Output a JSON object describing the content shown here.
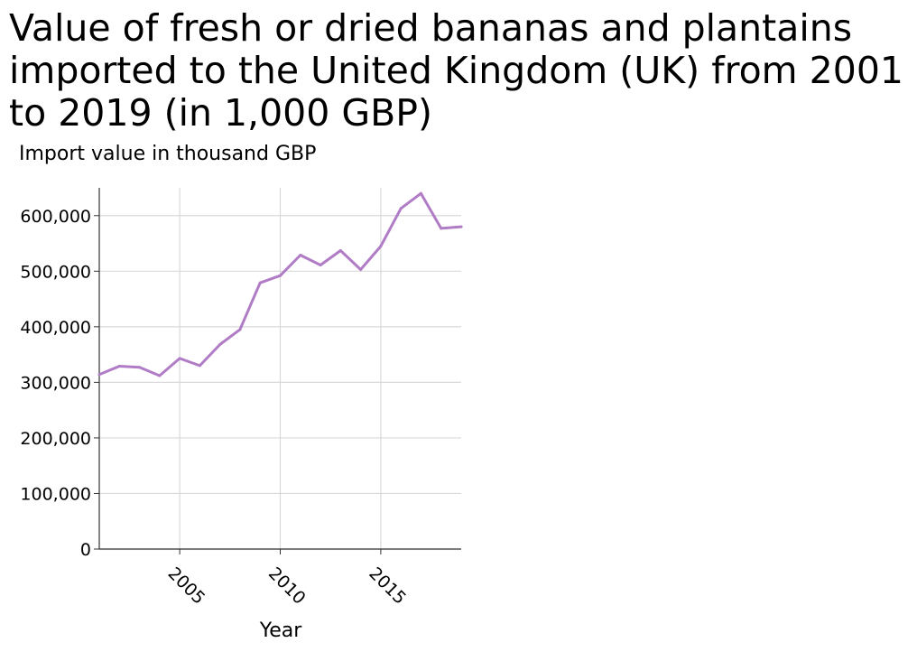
{
  "chart_data": {
    "type": "line",
    "title": "Value of fresh or dried bananas and plantains imported to the United Kingdom (UK) from 2001 to 2019 (in 1,000 GBP)",
    "xlabel": "Year",
    "ylabel": "Import value in thousand GBP",
    "xlim": [
      2001,
      2019
    ],
    "ylim": [
      0,
      650000
    ],
    "x_ticks": [
      2005,
      2010,
      2015
    ],
    "y_ticks": [
      0,
      100000,
      200000,
      300000,
      400000,
      500000,
      600000
    ],
    "y_tick_labels": [
      "0",
      "100,000",
      "200,000",
      "300,000",
      "400,000",
      "500,000",
      "600,000"
    ],
    "grid": true,
    "line_color": "#b07cc6",
    "series": [
      {
        "x": [
          2001,
          2002,
          2003,
          2004,
          2005,
          2006,
          2007,
          2008,
          2009,
          2010,
          2011,
          2012,
          2013,
          2014,
          2015,
          2016,
          2017,
          2018,
          2019
        ],
        "values": [
          314000,
          329000,
          327000,
          312000,
          343000,
          330000,
          368000,
          395000,
          479000,
          492000,
          529000,
          511000,
          537000,
          503000,
          545000,
          613000,
          640000,
          577000,
          580000
        ]
      }
    ]
  }
}
